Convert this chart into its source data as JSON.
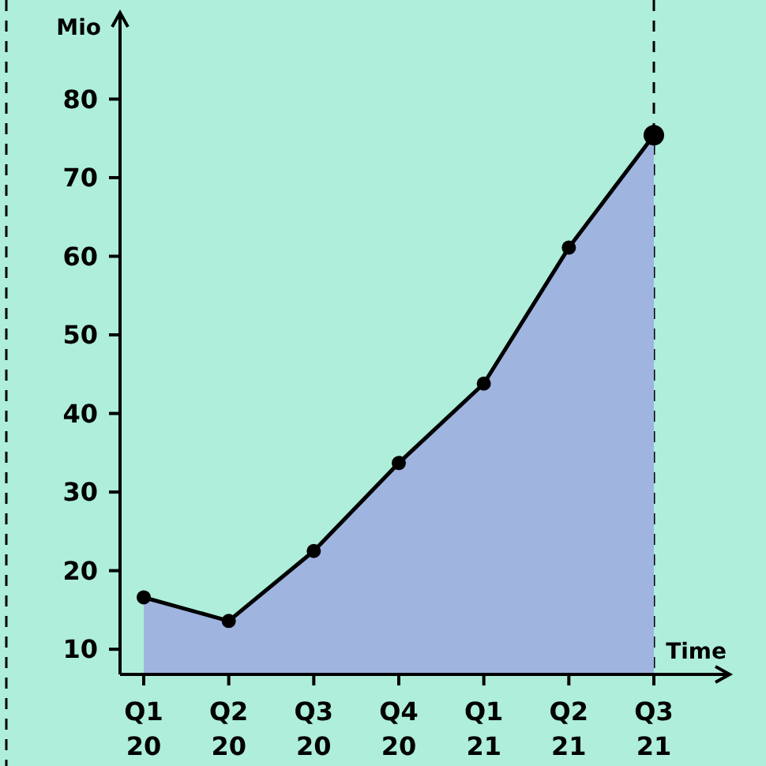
{
  "chart_data": {
    "type": "area",
    "xlabel": "Time",
    "ylabel": "Mio",
    "categories": [
      "Q1\n20",
      "Q2\n20",
      "Q3\n20",
      "Q4\n20",
      "Q1\n21",
      "Q2\n21",
      "Q3\n21"
    ],
    "series": [
      {
        "color": "#a0b4e0",
        "values": [
          16.6,
          13.6,
          22.5,
          33.7,
          43.8,
          61.1,
          75.4
        ]
      }
    ],
    "ylim": [
      6.8,
      91
    ],
    "yticks": [
      10,
      20,
      30,
      40,
      50,
      60,
      70,
      80
    ],
    "ref_lines": [
      {
        "axis": "x",
        "value": "Q3\n21",
        "line_style": "dashed",
        "color": "#000000"
      }
    ],
    "marker": "circle",
    "line_style": "solid",
    "grid": false
  }
}
